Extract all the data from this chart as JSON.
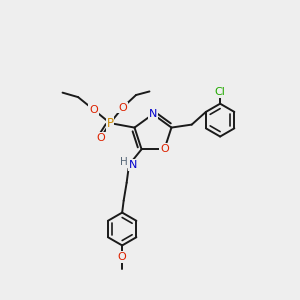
{
  "background_color": "#eeeeee",
  "figsize": [
    3.0,
    3.0
  ],
  "dpi": 100,
  "bond_color": "#1a1a1a",
  "bond_width": 1.4,
  "atom_colors": {
    "P": "#cc8800",
    "O": "#dd2200",
    "N": "#0000cc",
    "H": "#556677",
    "Cl": "#22aa00"
  }
}
